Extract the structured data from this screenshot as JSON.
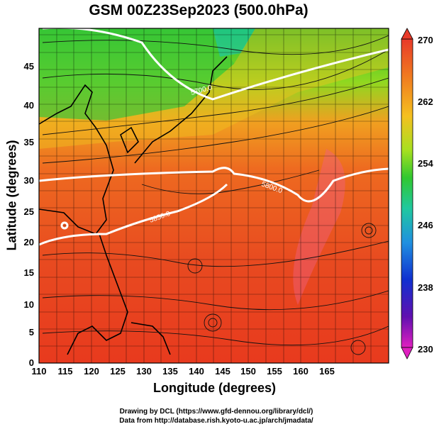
{
  "title": "GSM 00Z23Sep2023 (500.0hPa)",
  "axes": {
    "xlabel": "Longitude (degrees)",
    "ylabel": "Latitude  (degrees)",
    "xticks": [
      "110",
      "115",
      "120",
      "125",
      "130",
      "135",
      "140",
      "145",
      "150",
      "155",
      "160",
      "165"
    ],
    "yticks": [
      "0",
      "5",
      "10",
      "15",
      "20",
      "25",
      "30",
      "35",
      "40",
      "45"
    ]
  },
  "colorbar": {
    "labels": [
      "270",
      "262",
      "254",
      "246",
      "238",
      "230"
    ],
    "colors": [
      "#e83a2a",
      "#f07a20",
      "#f5c020",
      "#a8e020",
      "#30c830",
      "#20c8a0",
      "#2090e0",
      "#1030d0",
      "#6010b0",
      "#e020c0"
    ]
  },
  "contours": [
    {
      "label": "5700.0"
    },
    {
      "label": "5800.0"
    },
    {
      "label": "5850.0"
    }
  ],
  "credits": {
    "line1": "Drawing by DCL (https://www.gfd-dennou.org/library/dcl/)",
    "line2": "Data from http://database.rish.kyoto-u.ac.jp/arch/jmadata/"
  }
}
